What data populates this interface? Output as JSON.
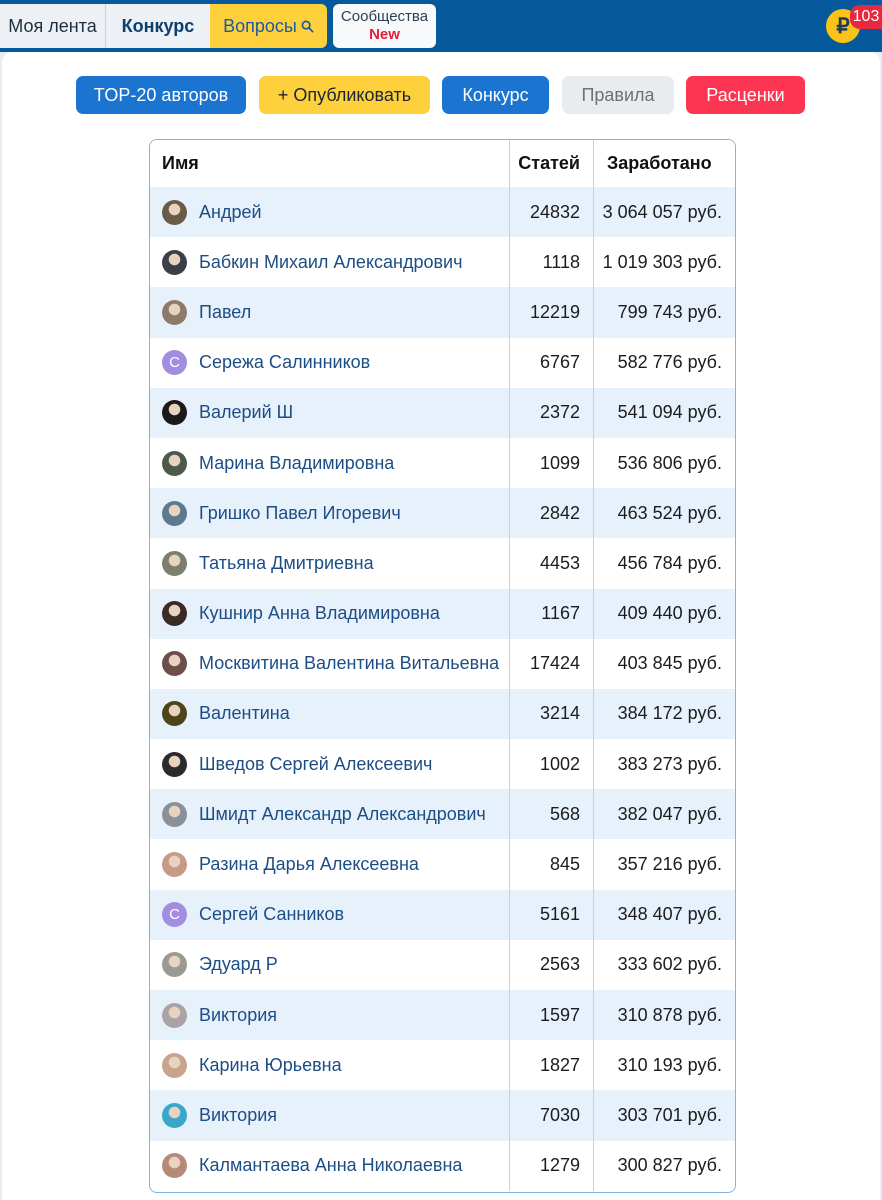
{
  "nav": {
    "feed_label": "Моя лента",
    "contest_label": "Конкурс",
    "questions_label": "Вопросы",
    "communities_label": "Сообщества",
    "communities_badge": "New",
    "coin_symbol": "₽",
    "coin_count": "103"
  },
  "actions": {
    "top20_label": "TOP-20 авторов",
    "publish_label": "+ Опубликовать",
    "contest_label": "Конкурс",
    "rules_label": "Правила",
    "prices_label": "Расценки"
  },
  "table": {
    "headers": {
      "name": "Имя",
      "articles": "Статей",
      "earned": "Заработано"
    },
    "rows": [
      {
        "name": "Андрей",
        "articles": "24832",
        "earned": "3 064 057 руб.",
        "avatar": "#6b5a48"
      },
      {
        "name": "Бабкин Михаил Александрович",
        "articles": "1118",
        "earned": "1 019 303 руб.",
        "avatar": "#3a3f4a"
      },
      {
        "name": "Павел",
        "articles": "12219",
        "earned": "799 743 руб.",
        "avatar": "#8d7b6a"
      },
      {
        "name": "Сережа Салинников",
        "articles": "6767",
        "earned": "582 776 руб.",
        "avatar_letter": "С"
      },
      {
        "name": "Валерий Ш",
        "articles": "2372",
        "earned": "541 094 руб.",
        "avatar": "#1a1a1a"
      },
      {
        "name": "Марина Владимировна",
        "articles": "1099",
        "earned": "536 806 руб.",
        "avatar": "#4d5a4a"
      },
      {
        "name": "Гришко Павел Игоревич",
        "articles": "2842",
        "earned": "463 524 руб.",
        "avatar": "#5d7a8c"
      },
      {
        "name": "Татьяна Дмитриевна",
        "articles": "4453",
        "earned": "456 784 руб.",
        "avatar": "#7a7f6e"
      },
      {
        "name": "Кушнир Анна Владимировна",
        "articles": "1167",
        "earned": "409 440 руб.",
        "avatar": "#3b2a25"
      },
      {
        "name": "Москвитина Валентина Витальевна",
        "articles": "17424",
        "earned": "403 845 руб.",
        "avatar": "#6e4e49"
      },
      {
        "name": "Валентина",
        "articles": "3214",
        "earned": "384 172 руб.",
        "avatar": "#4d4417"
      },
      {
        "name": "Шведов Сергей Алексеевич",
        "articles": "1002",
        "earned": "383 273 руб.",
        "avatar": "#2b2b2e"
      },
      {
        "name": "Шмидт Александр Александрович",
        "articles": "568",
        "earned": "382 047 руб.",
        "avatar": "#8a9098"
      },
      {
        "name": "Разина Дарья Алексеевна",
        "articles": "845",
        "earned": "357 216 руб.",
        "avatar": "#c79a86"
      },
      {
        "name": "Сергей Санников",
        "articles": "5161",
        "earned": "348 407 руб.",
        "avatar_letter": "С"
      },
      {
        "name": "Эдуард Р",
        "articles": "2563",
        "earned": "333 602 руб.",
        "avatar": "#9a9a93"
      },
      {
        "name": "Виктория",
        "articles": "1597",
        "earned": "310 878 руб.",
        "avatar": "#a9a2a6"
      },
      {
        "name": "Карина Юрьевна",
        "articles": "1827",
        "earned": "310 193 руб.",
        "avatar": "#c9a48c"
      },
      {
        "name": "Виктория",
        "articles": "7030",
        "earned": "303 701 руб.",
        "avatar": "#3aa6c8"
      },
      {
        "name": "Калмантаева Анна Николаевна",
        "articles": "1279",
        "earned": "300 827 руб.",
        "avatar": "#b58a78"
      }
    ]
  }
}
